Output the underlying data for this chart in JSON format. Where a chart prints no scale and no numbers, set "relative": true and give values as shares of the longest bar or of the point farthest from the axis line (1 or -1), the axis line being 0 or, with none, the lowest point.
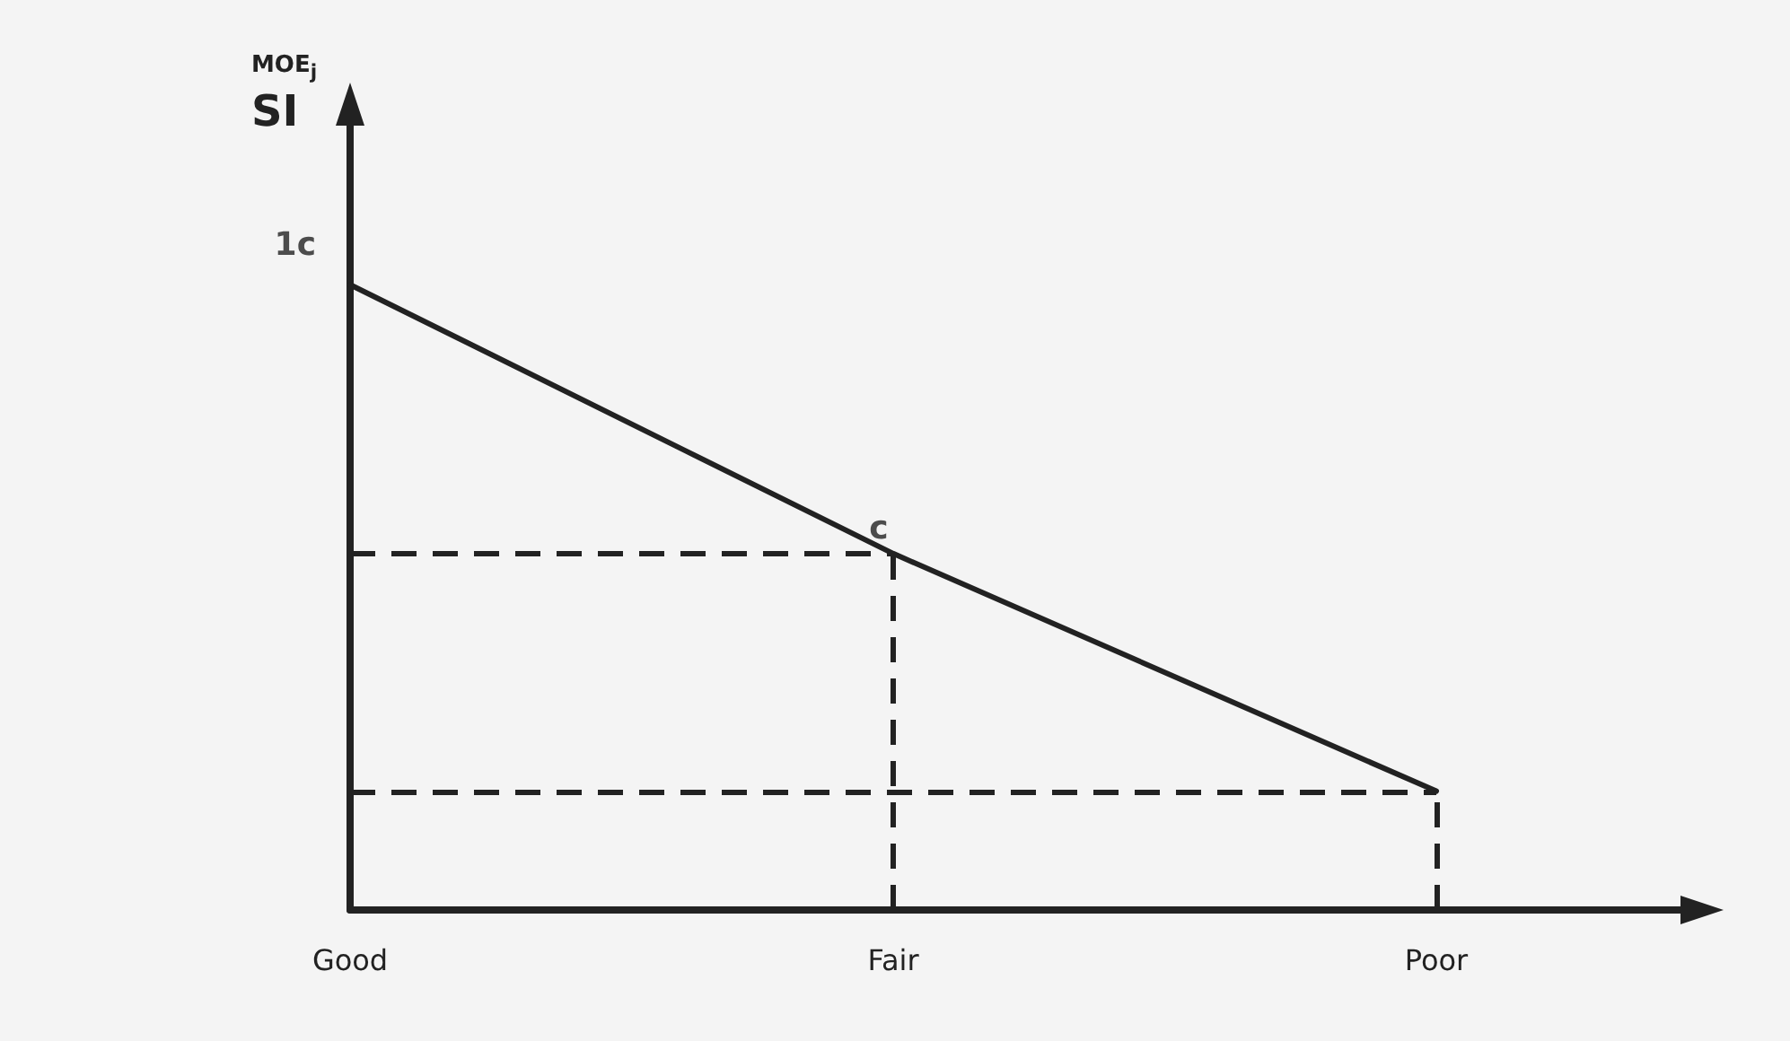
{
  "chart_data": {
    "type": "line",
    "relative": true,
    "categories": [
      "Good",
      "Fair",
      "Poor"
    ],
    "series": [
      {
        "color": "#222222",
        "values": [
          1,
          0.57,
          0.19
        ]
      }
    ],
    "marker": "none",
    "line_style": "solid",
    "grid": false,
    "ref_lines": [
      {
        "axis": "y",
        "value": 0.57,
        "line_style": "dashed",
        "color": "#222222"
      },
      {
        "axis": "y",
        "value": 0.19,
        "line_style": "dashed",
        "color": "#222222"
      },
      {
        "axis": "x",
        "value": "Fair",
        "line_style": "dashed",
        "color": "#222222"
      },
      {
        "axis": "x",
        "value": "Poor",
        "line_style": "dashed",
        "color": "#222222"
      }
    ],
    "annotations": [
      "MOE$_{j}$",
      "SI",
      {
        "text": "1c",
        "x": "Good",
        "y": 1
      },
      {
        "text": "c",
        "x": "Fair",
        "y": 0.57
      }
    ]
  }
}
